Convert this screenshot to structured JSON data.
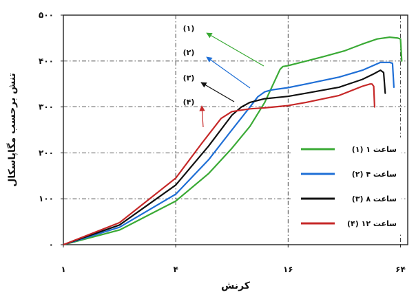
{
  "chart_data": {
    "type": "line",
    "xlabel": "کرنش",
    "ylabel": "تنش برحسب مگاپاسکال",
    "x_scale": "log2",
    "xlim": [
      1,
      70
    ],
    "ylim": [
      0,
      500
    ],
    "x_ticks": [
      {
        "value": 1,
        "label": "۱"
      },
      {
        "value": 4,
        "label": "۴"
      },
      {
        "value": 16,
        "label": "۱۶"
      },
      {
        "value": 64,
        "label": "۶۴"
      }
    ],
    "y_ticks": [
      {
        "value": 0,
        "label": "۰"
      },
      {
        "value": 100,
        "label": "۱۰۰"
      },
      {
        "value": 200,
        "label": "۲۰۰"
      },
      {
        "value": 300,
        "label": "۳۰۰"
      },
      {
        "value": 400,
        "label": "۴۰۰"
      },
      {
        "value": 500,
        "label": "۵۰۰"
      }
    ],
    "grid": true,
    "legend_position": "lower-right",
    "series": [
      {
        "name": "(۱) ۱ ساعت",
        "color": "#3aaa35",
        "x": [
          1,
          2,
          4,
          6,
          8,
          10,
          12,
          13.5,
          14.5,
          15,
          16,
          20,
          25,
          32,
          40,
          48,
          56,
          62,
          64,
          65
        ],
        "y": [
          0,
          32,
          95,
          155,
          210,
          258,
          310,
          355,
          382,
          388,
          390,
          400,
          410,
          422,
          437,
          448,
          452,
          450,
          448,
          400
        ]
      },
      {
        "name": "(۲) ۴ ساعت",
        "color": "#1f6fd6",
        "x": [
          1,
          2,
          4,
          6,
          8,
          10,
          11,
          12,
          13,
          16,
          20,
          30,
          40,
          50,
          56,
          58,
          59
        ],
        "y": [
          0,
          38,
          110,
          185,
          250,
          300,
          322,
          333,
          337,
          342,
          350,
          365,
          380,
          397,
          397,
          395,
          343
        ]
      },
      {
        "name": "(۳) ۸ ساعت",
        "color": "#111111",
        "x": [
          1,
          2,
          4,
          6,
          8,
          9,
          10,
          12,
          16,
          20,
          30,
          40,
          46,
          50,
          52,
          53
        ],
        "y": [
          0,
          43,
          130,
          215,
          282,
          300,
          310,
          318,
          323,
          330,
          343,
          360,
          372,
          380,
          375,
          330
        ]
      },
      {
        "name": "(۴) ۱۲ ساعت",
        "color": "#c62828",
        "x": [
          1,
          2,
          4,
          5.5,
          7,
          8,
          10,
          12,
          16,
          20,
          30,
          40,
          44,
          45,
          46,
          46.5
        ],
        "y": [
          0,
          48,
          145,
          220,
          275,
          290,
          296,
          298,
          303,
          310,
          325,
          345,
          350,
          350,
          345,
          300
        ]
      }
    ],
    "annotations": [
      {
        "label": "(۱)",
        "series": 0
      },
      {
        "label": "(۲)",
        "series": 1
      },
      {
        "label": "(۳)",
        "series": 2
      },
      {
        "label": "(۴)",
        "series": 3
      }
    ]
  }
}
